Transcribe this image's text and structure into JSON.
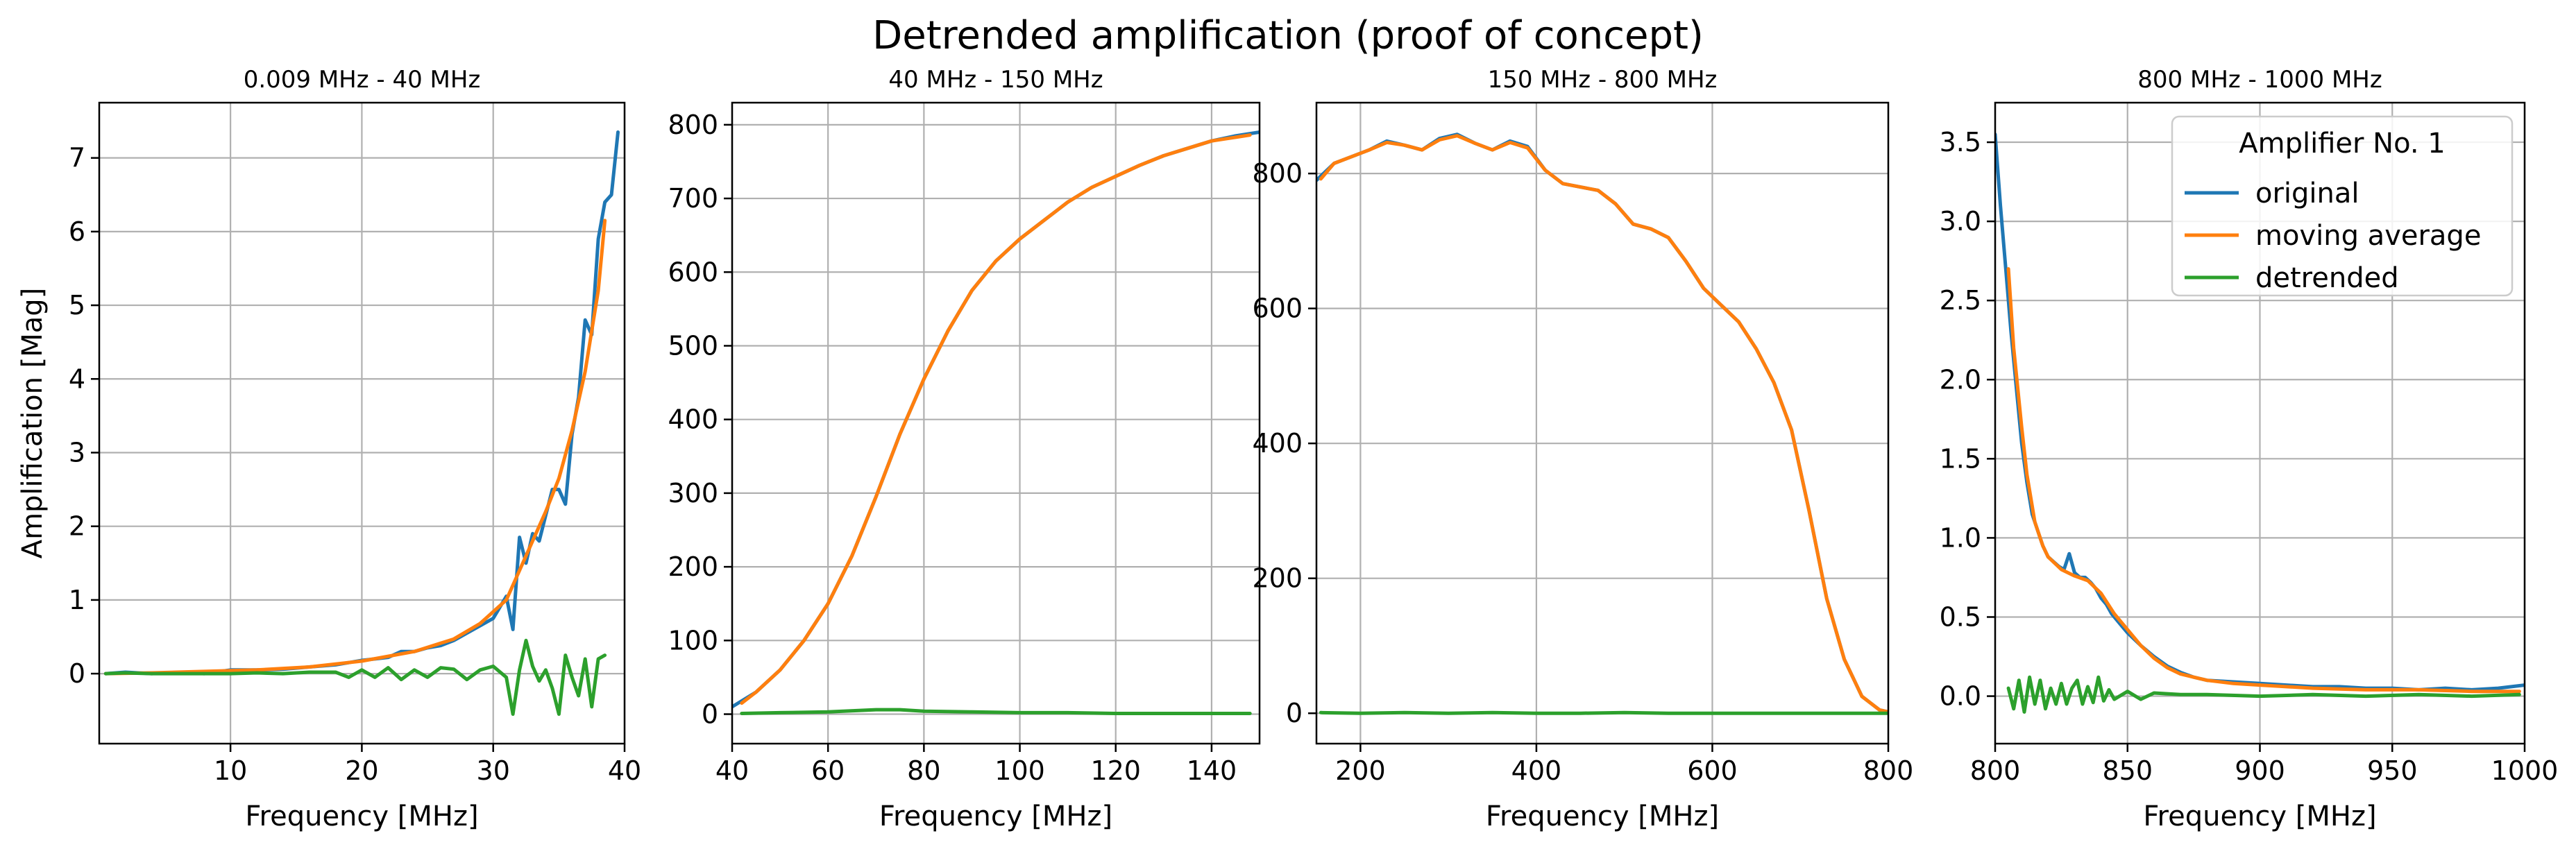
{
  "figure": {
    "title": "Detrended amplification (proof of concept)"
  },
  "chart_data": [
    {
      "type": "line",
      "title": "0.009 MHz - 40 MHz",
      "xlabel": "Frequency [MHz]",
      "ylabel": "Amplification [Mag]",
      "xlim": [
        0.009,
        40
      ],
      "ylim": [
        -0.95,
        7.75
      ],
      "xticks": [
        10,
        20,
        30,
        40
      ],
      "yticks": [
        0,
        1,
        2,
        3,
        4,
        5,
        6,
        7
      ],
      "grid": true,
      "series": [
        {
          "name": "original",
          "color": "#1f77b4",
          "x": [
            0.5,
            2,
            4,
            6,
            8,
            10,
            12,
            14,
            16,
            18,
            20,
            21,
            22,
            23,
            24,
            25,
            26,
            27,
            28,
            29,
            30,
            30.5,
            31,
            31.5,
            32,
            32.5,
            33,
            33.5,
            34,
            34.5,
            35,
            35.5,
            36,
            36.5,
            37,
            37.5,
            38,
            38.5,
            39,
            39.5
          ],
          "y": [
            0.0,
            0.02,
            0.0,
            0.02,
            0.0,
            0.05,
            0.05,
            0.06,
            0.09,
            0.12,
            0.18,
            0.2,
            0.22,
            0.3,
            0.3,
            0.35,
            0.38,
            0.45,
            0.55,
            0.65,
            0.75,
            0.9,
            1.05,
            0.6,
            1.85,
            1.5,
            1.9,
            1.8,
            2.15,
            2.5,
            2.5,
            2.3,
            3.25,
            3.75,
            4.8,
            4.6,
            5.9,
            6.4,
            6.5,
            7.35
          ]
        },
        {
          "name": "moving average",
          "color": "#ff7f0e",
          "x": [
            0.5,
            4,
            8,
            12,
            16,
            20,
            24,
            27,
            29,
            31,
            32,
            33,
            34,
            35,
            36,
            37,
            38,
            38.5
          ],
          "y": [
            0.0,
            0.01,
            0.03,
            0.05,
            0.09,
            0.17,
            0.3,
            0.47,
            0.68,
            1.0,
            1.4,
            1.8,
            2.2,
            2.65,
            3.3,
            4.1,
            5.2,
            6.15
          ]
        },
        {
          "name": "detrended",
          "color": "#2ca02c",
          "x": [
            0.5,
            2,
            4,
            6,
            8,
            10,
            12,
            14,
            16,
            18,
            19,
            20,
            21,
            22,
            23,
            24,
            25,
            26,
            27,
            28,
            29,
            30,
            31,
            31.5,
            32,
            32.5,
            33,
            33.5,
            34,
            34.5,
            35,
            35.5,
            36,
            36.5,
            37,
            37.5,
            38,
            38.5
          ],
          "y": [
            0.0,
            0.01,
            0.0,
            0.0,
            0.0,
            0.0,
            0.01,
            0.0,
            0.02,
            0.02,
            -0.05,
            0.05,
            -0.05,
            0.08,
            -0.08,
            0.05,
            -0.05,
            0.08,
            0.06,
            -0.08,
            0.05,
            0.1,
            -0.05,
            -0.55,
            0.05,
            0.45,
            0.1,
            -0.1,
            0.05,
            -0.2,
            -0.55,
            0.25,
            -0.05,
            -0.3,
            0.2,
            -0.45,
            0.2,
            0.25
          ]
        }
      ]
    },
    {
      "type": "line",
      "title": "40 MHz - 150 MHz",
      "xlabel": "Frequency [MHz]",
      "ylabel": "",
      "xlim": [
        40,
        150
      ],
      "ylim": [
        -40,
        830
      ],
      "xticks": [
        40,
        60,
        80,
        100,
        120,
        140
      ],
      "yticks": [
        0,
        100,
        200,
        300,
        400,
        500,
        600,
        700,
        800
      ],
      "grid": true,
      "series": [
        {
          "name": "original",
          "color": "#1f77b4",
          "x": [
            40,
            45,
            50,
            55,
            60,
            65,
            70,
            75,
            80,
            85,
            90,
            95,
            100,
            105,
            110,
            115,
            120,
            125,
            130,
            135,
            140,
            145,
            150
          ],
          "y": [
            10,
            30,
            60,
            100,
            150,
            215,
            295,
            380,
            455,
            520,
            575,
            615,
            645,
            670,
            695,
            715,
            730,
            745,
            758,
            768,
            778,
            785,
            790
          ]
        },
        {
          "name": "moving average",
          "color": "#ff7f0e",
          "x": [
            42,
            45,
            50,
            55,
            60,
            65,
            70,
            75,
            80,
            85,
            90,
            95,
            100,
            105,
            110,
            115,
            120,
            125,
            130,
            135,
            140,
            145,
            148
          ],
          "y": [
            15,
            30,
            60,
            100,
            150,
            215,
            295,
            380,
            455,
            520,
            575,
            615,
            645,
            670,
            695,
            715,
            730,
            745,
            758,
            768,
            778,
            783,
            786
          ]
        },
        {
          "name": "detrended",
          "color": "#2ca02c",
          "x": [
            42,
            50,
            60,
            70,
            75,
            80,
            90,
            100,
            110,
            120,
            130,
            140,
            148
          ],
          "y": [
            1,
            2,
            3,
            6,
            6,
            4,
            3,
            2,
            2,
            1,
            1,
            1,
            1
          ]
        }
      ]
    },
    {
      "type": "line",
      "title": "150 MHz - 800 MHz",
      "xlabel": "Frequency [MHz]",
      "ylabel": "",
      "xlim": [
        150,
        800
      ],
      "ylim": [
        -45,
        905
      ],
      "xticks": [
        200,
        400,
        600,
        800
      ],
      "yticks": [
        0,
        200,
        400,
        600,
        800
      ],
      "grid": true,
      "series": [
        {
          "name": "original",
          "color": "#1f77b4",
          "x": [
            150,
            170,
            190,
            210,
            230,
            250,
            270,
            290,
            310,
            330,
            350,
            370,
            390,
            410,
            430,
            450,
            470,
            490,
            510,
            530,
            550,
            570,
            590,
            610,
            630,
            650,
            670,
            690,
            710,
            730,
            750,
            770,
            790,
            800
          ],
          "y": [
            790,
            815,
            825,
            835,
            848,
            842,
            835,
            852,
            858,
            845,
            835,
            848,
            840,
            805,
            785,
            780,
            775,
            755,
            725,
            718,
            705,
            670,
            630,
            605,
            580,
            540,
            490,
            420,
            300,
            170,
            80,
            25,
            5,
            2
          ]
        },
        {
          "name": "moving average",
          "color": "#ff7f0e",
          "x": [
            155,
            170,
            190,
            210,
            230,
            250,
            270,
            290,
            310,
            330,
            350,
            370,
            390,
            410,
            430,
            450,
            470,
            490,
            510,
            530,
            550,
            570,
            590,
            610,
            630,
            650,
            670,
            690,
            710,
            730,
            750,
            770,
            790,
            800
          ],
          "y": [
            792,
            815,
            825,
            835,
            846,
            842,
            835,
            850,
            856,
            845,
            835,
            846,
            838,
            805,
            785,
            780,
            775,
            755,
            725,
            718,
            705,
            670,
            630,
            605,
            580,
            540,
            490,
            420,
            300,
            170,
            80,
            25,
            5,
            2
          ]
        },
        {
          "name": "detrended",
          "color": "#2ca02c",
          "x": [
            155,
            200,
            250,
            300,
            350,
            400,
            450,
            500,
            550,
            600,
            650,
            700,
            750,
            800
          ],
          "y": [
            1,
            0,
            1,
            0,
            1,
            0,
            0,
            1,
            0,
            0,
            0,
            0,
            0,
            0
          ]
        }
      ]
    },
    {
      "type": "line",
      "title": "800 MHz - 1000 MHz",
      "xlabel": "Frequency [MHz]",
      "ylabel": "",
      "xlim": [
        800,
        1000
      ],
      "ylim": [
        -0.3,
        3.75
      ],
      "xticks": [
        800,
        850,
        900,
        950,
        1000
      ],
      "yticks": [
        0.0,
        0.5,
        1.0,
        1.5,
        2.0,
        2.5,
        3.0,
        3.5
      ],
      "grid": true,
      "series": [
        {
          "name": "original",
          "color": "#1f77b4",
          "x": [
            800,
            802,
            804,
            806,
            808,
            810,
            812,
            814,
            816,
            818,
            820,
            822,
            824,
            826,
            828,
            830,
            832,
            834,
            836,
            838,
            840,
            842,
            844,
            846,
            848,
            850,
            855,
            860,
            865,
            870,
            875,
            880,
            890,
            900,
            910,
            920,
            930,
            940,
            950,
            960,
            970,
            980,
            990,
            1000
          ],
          "y": [
            3.55,
            3.1,
            2.7,
            2.3,
            1.95,
            1.6,
            1.35,
            1.15,
            1.05,
            0.95,
            0.88,
            0.85,
            0.82,
            0.8,
            0.9,
            0.78,
            0.75,
            0.75,
            0.72,
            0.68,
            0.62,
            0.58,
            0.52,
            0.48,
            0.44,
            0.4,
            0.32,
            0.25,
            0.19,
            0.15,
            0.12,
            0.1,
            0.09,
            0.08,
            0.07,
            0.06,
            0.06,
            0.05,
            0.05,
            0.04,
            0.05,
            0.04,
            0.05,
            0.07
          ]
        },
        {
          "name": "moving average",
          "color": "#ff7f0e",
          "x": [
            805,
            807,
            810,
            812,
            815,
            818,
            820,
            825,
            830,
            835,
            840,
            845,
            850,
            855,
            860,
            865,
            870,
            875,
            880,
            890,
            900,
            920,
            940,
            960,
            980,
            998
          ],
          "y": [
            2.7,
            2.2,
            1.7,
            1.4,
            1.1,
            0.95,
            0.88,
            0.8,
            0.76,
            0.73,
            0.65,
            0.52,
            0.42,
            0.32,
            0.24,
            0.18,
            0.14,
            0.12,
            0.1,
            0.08,
            0.07,
            0.05,
            0.04,
            0.04,
            0.03,
            0.03
          ]
        },
        {
          "name": "detrended",
          "color": "#2ca02c",
          "x": [
            805,
            807,
            809,
            811,
            813,
            815,
            817,
            819,
            821,
            823,
            825,
            827,
            829,
            831,
            833,
            835,
            837,
            839,
            841,
            843,
            845,
            850,
            855,
            860,
            870,
            880,
            900,
            920,
            940,
            960,
            980,
            998
          ],
          "y": [
            0.05,
            -0.08,
            0.1,
            -0.1,
            0.12,
            -0.05,
            0.1,
            -0.08,
            0.05,
            -0.05,
            0.08,
            -0.05,
            0.05,
            0.1,
            -0.05,
            0.06,
            -0.04,
            0.12,
            -0.03,
            0.04,
            -0.02,
            0.03,
            -0.02,
            0.02,
            0.01,
            0.01,
            0.0,
            0.01,
            0.0,
            0.01,
            0.0,
            0.01
          ]
        }
      ],
      "legend": {
        "title": "Amplifier No. 1",
        "placement": "top-right",
        "entries": [
          {
            "label": "original",
            "color": "#1f77b4"
          },
          {
            "label": "moving average",
            "color": "#ff7f0e"
          },
          {
            "label": "detrended",
            "color": "#2ca02c"
          }
        ]
      }
    }
  ]
}
